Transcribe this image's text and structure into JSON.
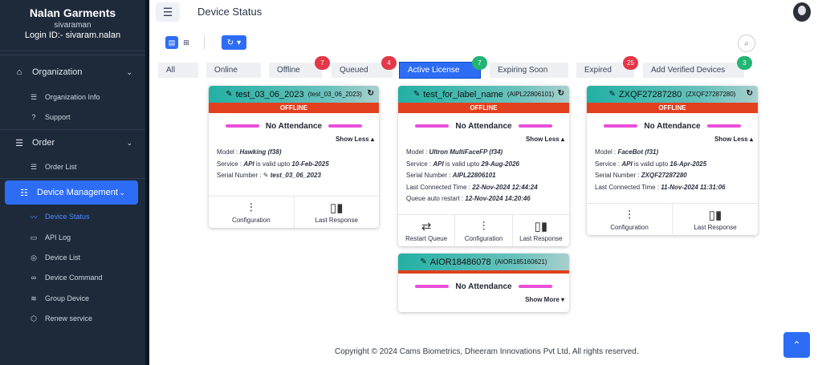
{
  "sidebar": {
    "brand": "Nalan Garments",
    "user": "sivaraman",
    "login": "Login ID:- sivaram.nalan",
    "organization": {
      "label": "Organization",
      "items": [
        "Organization Info",
        "Support"
      ]
    },
    "order": {
      "label": "Order",
      "items": [
        "Order List"
      ]
    },
    "device_management": {
      "label": "Device Management",
      "items": [
        "Device Status",
        "API Log",
        "Device List",
        "Device Command",
        "Group Device",
        "Renew service"
      ]
    }
  },
  "header": {
    "title": "Device Status",
    "menu_icon": "hamburger-icon",
    "avatar_icon": "user-avatar-icon"
  },
  "toolbar": {
    "refresh_icon": "↻",
    "caret": "▾",
    "search_icon": "⌕"
  },
  "tabs": [
    {
      "label": "All"
    },
    {
      "label": "Online"
    },
    {
      "label": "Offline",
      "badge": "7"
    },
    {
      "label": "Queued",
      "badge": "4"
    },
    {
      "label": "Active License",
      "badge": "7"
    },
    {
      "label": "Expiring Soon"
    },
    {
      "label": "Expired",
      "badge": "25"
    },
    {
      "label": "Add Verified Devices",
      "badge": "3"
    }
  ],
  "cards": [
    {
      "name": "test_03_06_2023",
      "id": "(test_03_06_2023)",
      "status": "OFFLINE",
      "attendance": "No Attendance",
      "toggle": "Show Less ▴",
      "model_label": "Model : ",
      "model": "Hawking (f38)",
      "service_label": "Service : ",
      "service_api": "API",
      "service_mid": " is valid upto ",
      "service_date": "10-Feb-2025",
      "serial_label": "Serial Number : ",
      "serial": "test_03_06_2023",
      "actions": [
        "Configuration",
        "Last Response"
      ]
    },
    {
      "name": "test_for_label_name",
      "id": "(AIPL22806101)",
      "status": "OFFLINE",
      "attendance": "No Attendance",
      "toggle": "Show Less ▴",
      "model_label": "Model : ",
      "model": "Ultron MultiFaceFP (f34)",
      "service_label": "Service : ",
      "service_api": "API",
      "service_mid": " is valid upto ",
      "service_date": "29-Aug-2026",
      "serial_label": "Serial Number : ",
      "serial": "AIPL22806101",
      "last_conn_label": "Last Connected Time : ",
      "last_conn": "22-Nov-2024 12:44:24",
      "queue_label": "Queue auto restart : ",
      "queue": "12-Nov-2024 14:20:46",
      "actions": [
        "Restart Queue",
        "Configuration",
        "Last Response"
      ]
    },
    {
      "name": "ZXQF27287280",
      "id": "(ZXQF27287280)",
      "status": "OFFLINE",
      "attendance": "No Attendance",
      "toggle": "Show Less ▴",
      "model_label": "Model : ",
      "model": "FaceBot (f31)",
      "service_label": "Service : ",
      "service_api": "API",
      "service_mid": " is valid upto ",
      "service_date": "16-Apr-2025",
      "serial_label": "Serial Number : ",
      "serial": "ZXQF27287280",
      "last_conn_label": "Last Connected Time : ",
      "last_conn": "11-Nov-2024 11:31:06",
      "actions": [
        "Configuration",
        "Last Response"
      ]
    },
    {
      "name": "AIOR18486078",
      "id": "(AIOR185160621)",
      "attendance": "No Attendance",
      "toggle": "Show More ▾"
    }
  ],
  "footer": {
    "copyright": "Copyright © 2024 Cams Biometrics, Dheeram Innovations Pvt Ltd, All rights reserved."
  },
  "colors": {
    "accent": "#2d6df6",
    "sidebar": "#1e2a3a",
    "offline": "#e2411f",
    "badge_red": "#e23847",
    "badge_green": "#22b573",
    "card_head": "#23b0a4"
  }
}
